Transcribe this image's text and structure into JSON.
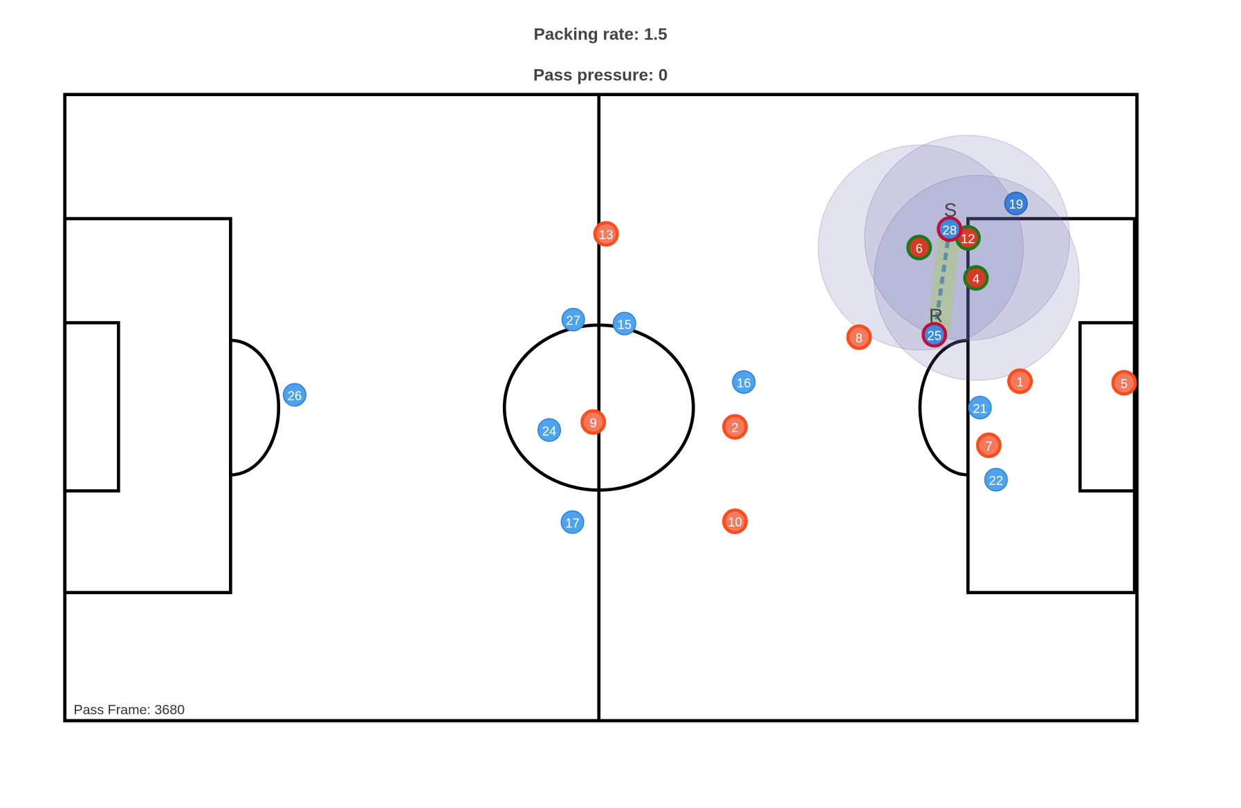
{
  "header": {
    "title": "Packing rate: 1.5",
    "subtitle": "Pass pressure: 0"
  },
  "pitch": {
    "footer": "Pass Frame: 3680"
  },
  "pass": {
    "sender_label": "S",
    "receiver_label": "R"
  },
  "players": [
    {
      "label": "26"
    },
    {
      "label": "27"
    },
    {
      "label": "15"
    },
    {
      "label": "24"
    },
    {
      "label": "17"
    },
    {
      "label": "16"
    },
    {
      "label": "21"
    },
    {
      "label": "22"
    },
    {
      "label": "19"
    },
    {
      "label": "13"
    },
    {
      "label": "9"
    },
    {
      "label": "2"
    },
    {
      "label": "10"
    },
    {
      "label": "8"
    },
    {
      "label": "1"
    },
    {
      "label": "7"
    },
    {
      "label": "5"
    },
    {
      "label": "6"
    },
    {
      "label": "12"
    },
    {
      "label": "4"
    },
    {
      "label": "28"
    },
    {
      "label": "25"
    }
  ]
}
